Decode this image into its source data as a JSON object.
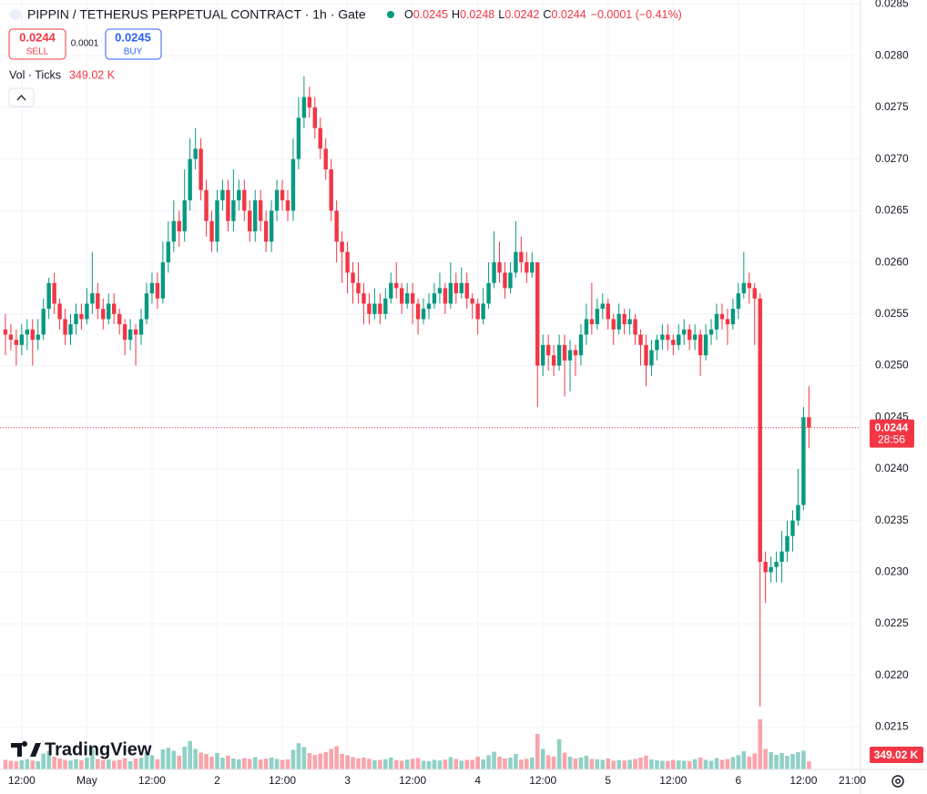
{
  "chart_data": {
    "type": "candlestick",
    "title": "PIPPIN / TETHERUS PERPETUAL CONTRACT · 1h · Gate",
    "legend_labels": [
      "O",
      "H",
      "L",
      "C"
    ],
    "change": "−0.0001 (−0.41%)",
    "sell_label": "SELL",
    "buy_label": "BUY",
    "buy_price": 0.0245,
    "spread": 0.0001,
    "volume_title": "Vol · Ticks",
    "volume_label": "349.02 K",
    "countdown": "28:56",
    "brand": "TradingView",
    "up_color": "#089981",
    "down_color": "#f23645",
    "grid": true,
    "ylim": [
      0.02109,
      0.02854
    ],
    "yticks": [
      0.0215,
      {
        "value": 0.022,
        "label": "0.0220"
      },
      0.0225,
      {
        "value": 0.023,
        "label": "0.0230"
      },
      0.0235,
      {
        "value": 0.024,
        "label": "0.0240"
      },
      0.0245,
      {
        "value": 0.025,
        "label": "0.0250"
      },
      0.0255,
      {
        "value": 0.026,
        "label": "0.0260"
      },
      0.0265,
      {
        "value": 0.027,
        "label": "0.0270"
      },
      0.0275,
      {
        "value": 0.028,
        "label": "0.0280"
      },
      0.0285
    ],
    "xlim": [
      -1,
      157.5
    ],
    "xticks": [
      {
        "value": 3,
        "label": "12:00"
      },
      {
        "value": 15,
        "label": "May"
      },
      {
        "value": 27,
        "label": "12:00"
      },
      {
        "value": 39,
        "label": "2"
      },
      {
        "value": 51,
        "label": "12:00"
      },
      {
        "value": 63,
        "label": "3"
      },
      {
        "value": 75,
        "label": "12:00"
      },
      {
        "value": 87,
        "label": "4"
      },
      {
        "value": 99,
        "label": "12:00"
      },
      {
        "value": 111,
        "label": "5"
      },
      {
        "value": 123,
        "label": "12:00"
      },
      {
        "value": 135,
        "label": "6"
      },
      {
        "value": 147,
        "label": "12:00"
      },
      {
        "value": 156,
        "label": "21:00"
      }
    ],
    "candles": [
      [
        0.02535,
        0.0255,
        0.0251,
        0.0253
      ],
      [
        0.0253,
        0.0254,
        0.02515,
        0.02525
      ],
      [
        0.02525,
        0.02535,
        0.025,
        0.0252
      ],
      [
        0.0252,
        0.0254,
        0.0251,
        0.0253
      ],
      [
        0.0253,
        0.02545,
        0.02515,
        0.02535
      ],
      [
        0.02535,
        0.02545,
        0.025,
        0.02525
      ],
      [
        0.02525,
        0.02545,
        0.02515,
        0.0253
      ],
      [
        0.0253,
        0.02565,
        0.02525,
        0.02555
      ],
      [
        0.02555,
        0.02585,
        0.02545,
        0.0258
      ],
      [
        0.0258,
        0.0259,
        0.0255,
        0.0256
      ],
      [
        0.0256,
        0.02565,
        0.02535,
        0.02545
      ],
      [
        0.02545,
        0.02555,
        0.0252,
        0.0253
      ],
      [
        0.0253,
        0.0255,
        0.0252,
        0.0254
      ],
      [
        0.0254,
        0.0256,
        0.0253,
        0.0255
      ],
      [
        0.0255,
        0.0256,
        0.02535,
        0.02545
      ],
      [
        0.02545,
        0.02575,
        0.0254,
        0.0256
      ],
      [
        0.0256,
        0.0261,
        0.0255,
        0.0257
      ],
      [
        0.0257,
        0.0258,
        0.02545,
        0.02555
      ],
      [
        0.02555,
        0.02565,
        0.02535,
        0.02545
      ],
      [
        0.02545,
        0.0257,
        0.0254,
        0.0256
      ],
      [
        0.0256,
        0.0257,
        0.0254,
        0.0255
      ],
      [
        0.0255,
        0.02555,
        0.0253,
        0.0254
      ],
      [
        0.0254,
        0.02545,
        0.0251,
        0.02525
      ],
      [
        0.02525,
        0.02545,
        0.02515,
        0.02535
      ],
      [
        0.02535,
        0.0254,
        0.025,
        0.0253
      ],
      [
        0.0253,
        0.02555,
        0.0252,
        0.02545
      ],
      [
        0.02545,
        0.0258,
        0.0254,
        0.0257
      ],
      [
        0.0257,
        0.0259,
        0.0256,
        0.0258
      ],
      [
        0.0258,
        0.0259,
        0.02555,
        0.02565
      ],
      [
        0.02565,
        0.0262,
        0.0256,
        0.026
      ],
      [
        0.026,
        0.0264,
        0.0259,
        0.0262
      ],
      [
        0.0262,
        0.0266,
        0.0261,
        0.0264
      ],
      [
        0.0264,
        0.0265,
        0.02615,
        0.0263
      ],
      [
        0.0263,
        0.0269,
        0.0262,
        0.0266
      ],
      [
        0.0266,
        0.0272,
        0.0265,
        0.027
      ],
      [
        0.027,
        0.0273,
        0.0269,
        0.0271
      ],
      [
        0.0271,
        0.0272,
        0.0266,
        0.0267
      ],
      [
        0.0267,
        0.0268,
        0.02625,
        0.0264
      ],
      [
        0.0264,
        0.0265,
        0.0261,
        0.0262
      ],
      [
        0.0262,
        0.0267,
        0.0261,
        0.0266
      ],
      [
        0.0266,
        0.0268,
        0.0265,
        0.0267
      ],
      [
        0.0267,
        0.0268,
        0.0263,
        0.0264
      ],
      [
        0.0264,
        0.0269,
        0.0263,
        0.0266
      ],
      [
        0.0266,
        0.0268,
        0.0265,
        0.0267
      ],
      [
        0.0267,
        0.0268,
        0.0264,
        0.0265
      ],
      [
        0.0265,
        0.0266,
        0.0262,
        0.0263
      ],
      [
        0.0263,
        0.0267,
        0.0262,
        0.0266
      ],
      [
        0.0266,
        0.0267,
        0.0263,
        0.0264
      ],
      [
        0.0264,
        0.0265,
        0.0261,
        0.0262
      ],
      [
        0.0262,
        0.0266,
        0.0261,
        0.0265
      ],
      [
        0.0265,
        0.0268,
        0.0264,
        0.0267
      ],
      [
        0.0267,
        0.0268,
        0.0265,
        0.0266
      ],
      [
        0.0266,
        0.0267,
        0.0264,
        0.0265
      ],
      [
        0.0265,
        0.0272,
        0.0264,
        0.027
      ],
      [
        0.027,
        0.0276,
        0.0269,
        0.0274
      ],
      [
        0.0274,
        0.0278,
        0.0273,
        0.0276
      ],
      [
        0.0276,
        0.0277,
        0.0274,
        0.0275
      ],
      [
        0.0275,
        0.0276,
        0.0272,
        0.0273
      ],
      [
        0.0273,
        0.0274,
        0.027,
        0.0271
      ],
      [
        0.0271,
        0.0272,
        0.0268,
        0.0269
      ],
      [
        0.0269,
        0.027,
        0.0264,
        0.0265
      ],
      [
        0.0265,
        0.0266,
        0.026,
        0.0262
      ],
      [
        0.0262,
        0.0263,
        0.0258,
        0.0261
      ],
      [
        0.0261,
        0.0262,
        0.0257,
        0.0259
      ],
      [
        0.0259,
        0.026,
        0.0256,
        0.0258
      ],
      [
        0.0258,
        0.026,
        0.0256,
        0.0257
      ],
      [
        0.0257,
        0.0258,
        0.0254,
        0.0256
      ],
      [
        0.0256,
        0.0257,
        0.0254,
        0.0255
      ],
      [
        0.0255,
        0.02575,
        0.02545,
        0.0256
      ],
      [
        0.0256,
        0.0257,
        0.0254,
        0.0255
      ],
      [
        0.0255,
        0.02575,
        0.02545,
        0.02565
      ],
      [
        0.02565,
        0.0259,
        0.0256,
        0.0258
      ],
      [
        0.0258,
        0.026,
        0.02565,
        0.02575
      ],
      [
        0.02575,
        0.0258,
        0.0255,
        0.0256
      ],
      [
        0.0256,
        0.0258,
        0.02555,
        0.0257
      ],
      [
        0.0257,
        0.0258,
        0.0254,
        0.0256
      ],
      [
        0.0256,
        0.02565,
        0.0253,
        0.02545
      ],
      [
        0.02545,
        0.02565,
        0.0254,
        0.02555
      ],
      [
        0.02555,
        0.0257,
        0.02545,
        0.0256
      ],
      [
        0.0256,
        0.0258,
        0.02555,
        0.0257
      ],
      [
        0.0257,
        0.0259,
        0.0256,
        0.02575
      ],
      [
        0.02575,
        0.0258,
        0.0255,
        0.0256
      ],
      [
        0.0256,
        0.026,
        0.02555,
        0.0258
      ],
      [
        0.0258,
        0.0259,
        0.0256,
        0.0257
      ],
      [
        0.0257,
        0.02595,
        0.02565,
        0.0258
      ],
      [
        0.0258,
        0.0259,
        0.02555,
        0.02565
      ],
      [
        0.02565,
        0.0257,
        0.02545,
        0.0256
      ],
      [
        0.0256,
        0.02565,
        0.0253,
        0.02545
      ],
      [
        0.02545,
        0.02575,
        0.0254,
        0.0256
      ],
      [
        0.0256,
        0.026,
        0.02555,
        0.0258
      ],
      [
        0.0258,
        0.0263,
        0.02575,
        0.026
      ],
      [
        0.026,
        0.0262,
        0.0258,
        0.0259
      ],
      [
        0.0259,
        0.026,
        0.02565,
        0.02575
      ],
      [
        0.02575,
        0.026,
        0.0257,
        0.0259
      ],
      [
        0.0259,
        0.0264,
        0.02585,
        0.0261
      ],
      [
        0.0261,
        0.02625,
        0.0259,
        0.026
      ],
      [
        0.026,
        0.0261,
        0.0258,
        0.0259
      ],
      [
        0.0259,
        0.0261,
        0.02585,
        0.026
      ],
      [
        0.026,
        0.026,
        0.0246,
        0.025
      ],
      [
        0.025,
        0.0253,
        0.0249,
        0.0252
      ],
      [
        0.0252,
        0.0253,
        0.02495,
        0.0251
      ],
      [
        0.0251,
        0.0252,
        0.0249,
        0.025
      ],
      [
        0.025,
        0.0253,
        0.02495,
        0.0252
      ],
      [
        0.0252,
        0.0253,
        0.0247,
        0.02505
      ],
      [
        0.02505,
        0.02525,
        0.02475,
        0.02515
      ],
      [
        0.02515,
        0.0252,
        0.0249,
        0.0251
      ],
      [
        0.0251,
        0.0254,
        0.025,
        0.0253
      ],
      [
        0.0253,
        0.0256,
        0.0252,
        0.02545
      ],
      [
        0.02545,
        0.0258,
        0.0253,
        0.0254
      ],
      [
        0.0254,
        0.02565,
        0.02535,
        0.02555
      ],
      [
        0.02555,
        0.0257,
        0.02545,
        0.0256
      ],
      [
        0.0256,
        0.02565,
        0.02535,
        0.02545
      ],
      [
        0.02545,
        0.0255,
        0.0252,
        0.02535
      ],
      [
        0.02535,
        0.0256,
        0.0253,
        0.0255
      ],
      [
        0.0255,
        0.02555,
        0.0253,
        0.0254
      ],
      [
        0.0254,
        0.02555,
        0.0253,
        0.02545
      ],
      [
        0.02545,
        0.0255,
        0.0252,
        0.0253
      ],
      [
        0.0253,
        0.02535,
        0.025,
        0.0252
      ],
      [
        0.0252,
        0.0253,
        0.0248,
        0.025
      ],
      [
        0.025,
        0.02525,
        0.0249,
        0.02515
      ],
      [
        0.02515,
        0.0253,
        0.02505,
        0.02525
      ],
      [
        0.02525,
        0.0254,
        0.02515,
        0.0253
      ],
      [
        0.0253,
        0.0254,
        0.02515,
        0.02525
      ],
      [
        0.02525,
        0.0253,
        0.0251,
        0.0252
      ],
      [
        0.0252,
        0.0254,
        0.02515,
        0.0253
      ],
      [
        0.0253,
        0.02545,
        0.0252,
        0.02535
      ],
      [
        0.02535,
        0.0254,
        0.02515,
        0.02525
      ],
      [
        0.02525,
        0.0254,
        0.02515,
        0.0253
      ],
      [
        0.0253,
        0.02535,
        0.0249,
        0.0251
      ],
      [
        0.0251,
        0.0254,
        0.02505,
        0.0253
      ],
      [
        0.0253,
        0.02545,
        0.0252,
        0.02535
      ],
      [
        0.02535,
        0.0256,
        0.02525,
        0.0255
      ],
      [
        0.0255,
        0.0256,
        0.02535,
        0.02545
      ],
      [
        0.02545,
        0.02555,
        0.0252,
        0.0254
      ],
      [
        0.0254,
        0.02565,
        0.02535,
        0.02555
      ],
      [
        0.02555,
        0.0258,
        0.02545,
        0.0257
      ],
      [
        0.0257,
        0.0261,
        0.02565,
        0.0258
      ],
      [
        0.0258,
        0.0259,
        0.0256,
        0.02575
      ],
      [
        0.02575,
        0.0258,
        0.0252,
        0.02565
      ],
      [
        0.02565,
        0.0257,
        0.0217,
        0.0231
      ],
      [
        0.0231,
        0.0232,
        0.0227,
        0.023
      ],
      [
        0.023,
        0.02315,
        0.0229,
        0.02305
      ],
      [
        0.02305,
        0.0232,
        0.0229,
        0.0231
      ],
      [
        0.0231,
        0.0234,
        0.0229,
        0.0232
      ],
      [
        0.0232,
        0.0235,
        0.0231,
        0.02335
      ],
      [
        0.02335,
        0.0236,
        0.0232,
        0.0235
      ],
      [
        0.0235,
        0.024,
        0.02345,
        0.02365
      ],
      [
        0.02365,
        0.0246,
        0.0236,
        0.0245
      ],
      [
        0.0245,
        0.0248,
        0.0242,
        0.0244
      ]
    ],
    "volumes": [
      420,
      380,
      350,
      400,
      450,
      390,
      360,
      700,
      820,
      560,
      480,
      420,
      390,
      450,
      400,
      520,
      900,
      460,
      410,
      440,
      380,
      420,
      500,
      360,
      480,
      510,
      780,
      620,
      450,
      880,
      950,
      820,
      600,
      1000,
      1250,
      900,
      740,
      680,
      560,
      720,
      520,
      610,
      480,
      450,
      500,
      460,
      540,
      430,
      480,
      520,
      460,
      420,
      440,
      860,
      1150,
      980,
      720,
      640,
      700,
      760,
      900,
      1020,
      680,
      620,
      540,
      480,
      520,
      460,
      400,
      420,
      450,
      520,
      410,
      380,
      430,
      470,
      500,
      380,
      360,
      420,
      390,
      430,
      540,
      460,
      380,
      420,
      410,
      560,
      440,
      620,
      780,
      560,
      480,
      520,
      680,
      430,
      470,
      520,
      1560,
      900,
      620,
      560,
      1320,
      740,
      560,
      480,
      520,
      600,
      460,
      440,
      420,
      480,
      380,
      410,
      390,
      420,
      460,
      520,
      610,
      440,
      400,
      380,
      360,
      420,
      390,
      380,
      370,
      450,
      520,
      420,
      380,
      500,
      420,
      460,
      540,
      620,
      800,
      560,
      700,
      2200,
      900,
      760,
      640,
      720,
      600,
      680,
      760,
      820,
      349.02
    ]
  }
}
